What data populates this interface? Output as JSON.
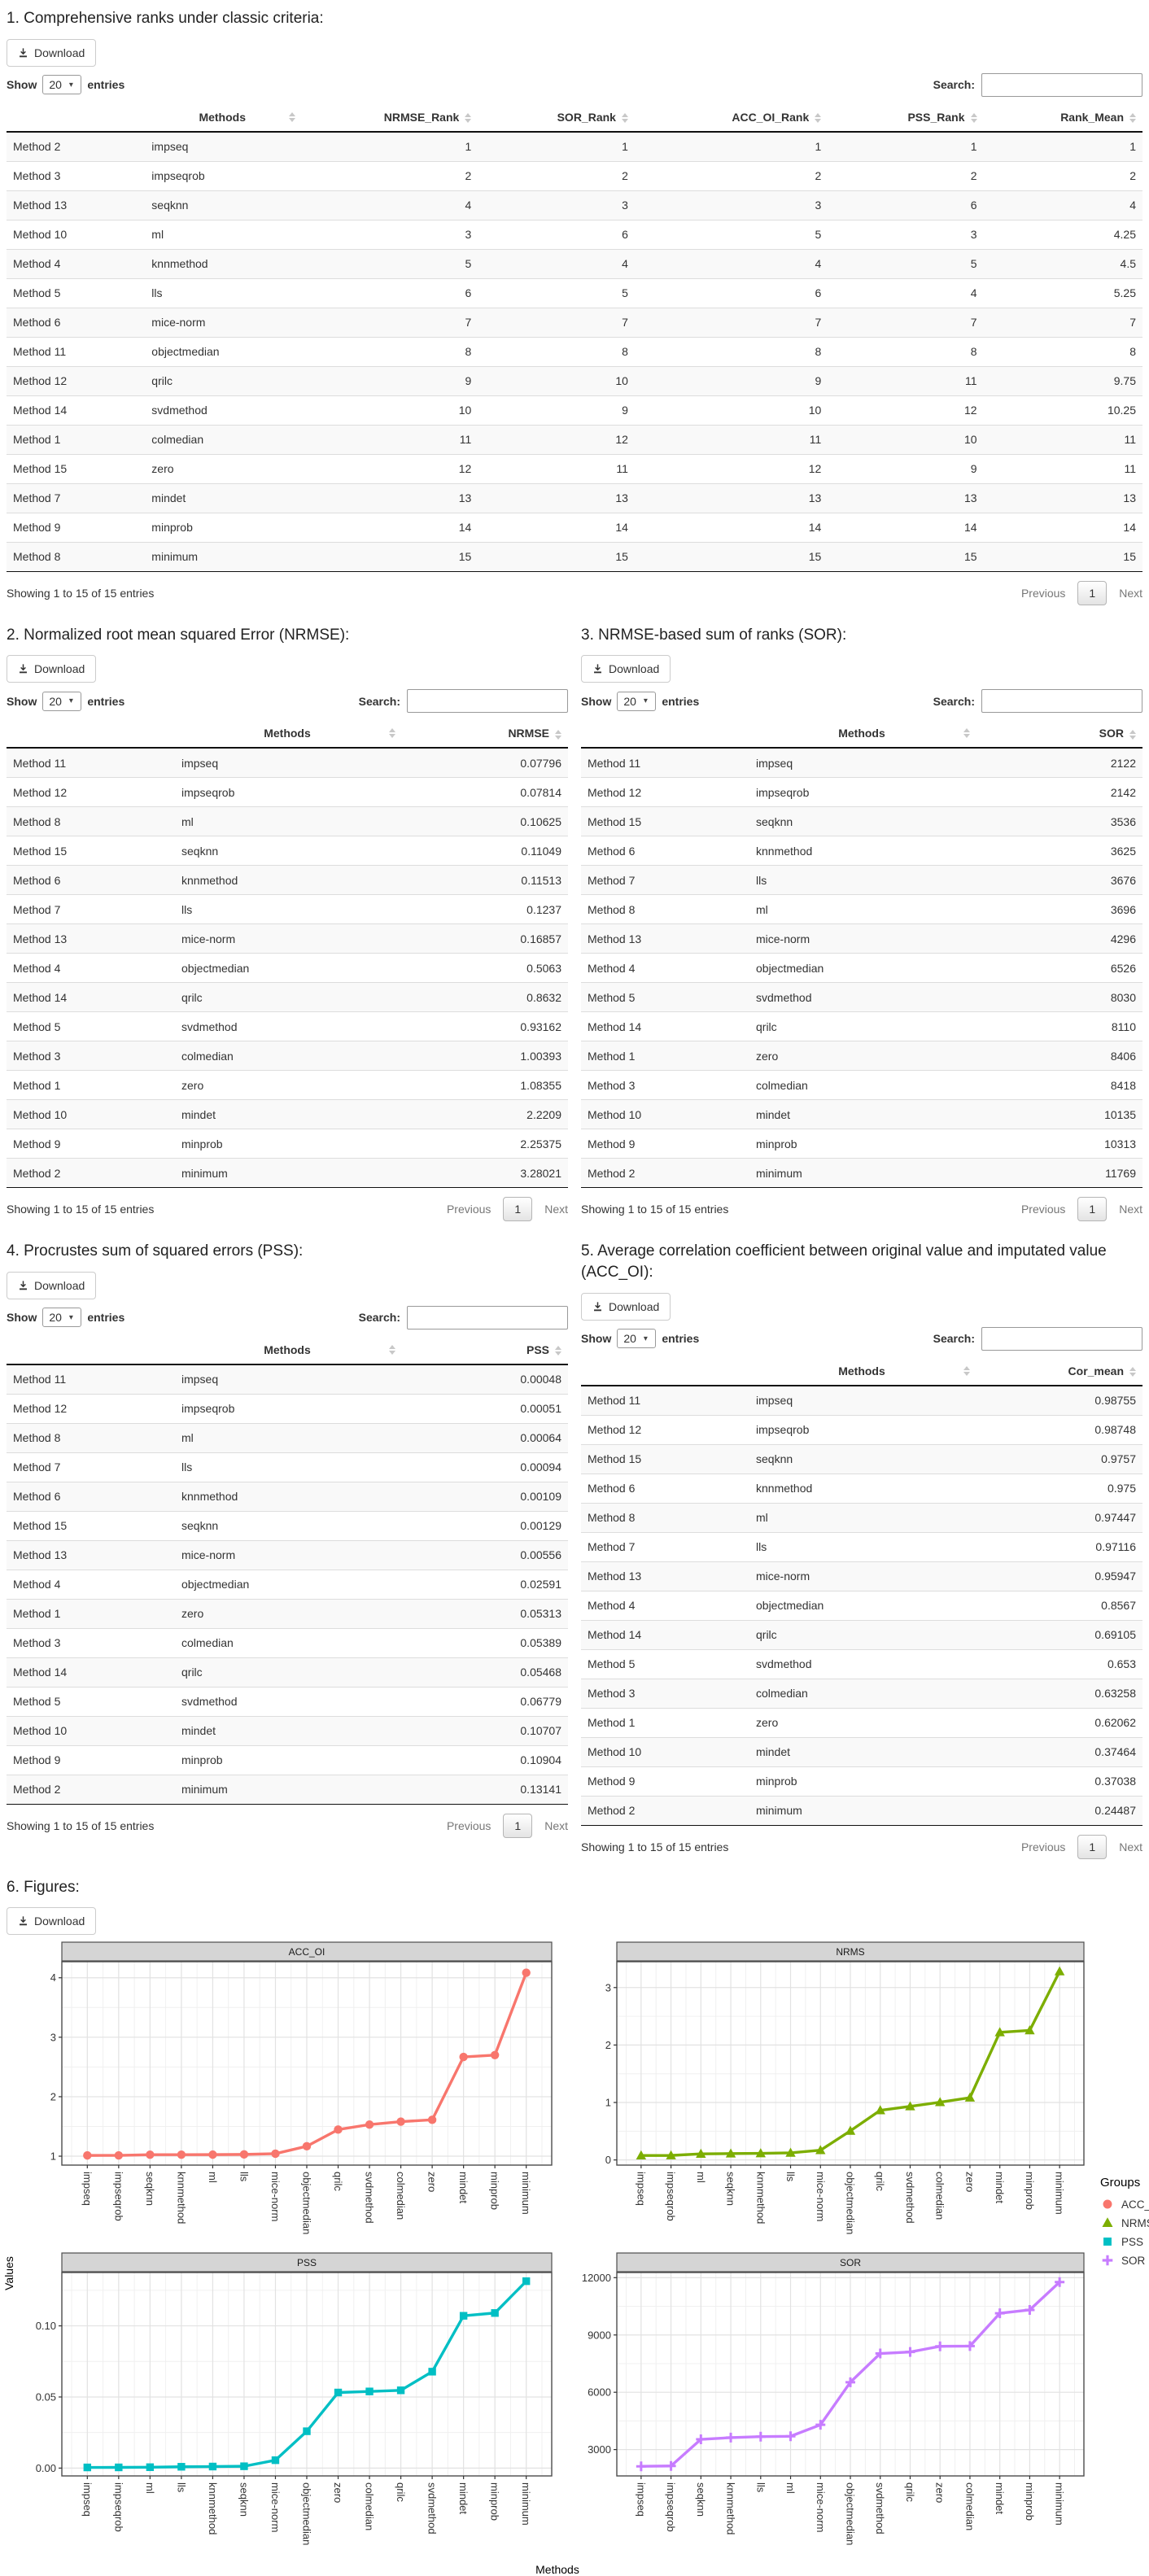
{
  "ui": {
    "download_label": "Download",
    "show_label": "Show",
    "page_size": "20",
    "entries_label": "entries",
    "search_label": "Search:",
    "search_value": "",
    "footer_text": "Showing 1 to 15 of 15 entries",
    "prev_label": "Previous",
    "page_number": "1",
    "next_label": "Next"
  },
  "sections": {
    "ranks": {
      "title": "1. Comprehensive ranks under classic criteria:",
      "columns": [
        "Methods",
        "NRMSE_Rank",
        "SOR_Rank",
        "ACC_OI_Rank",
        "PSS_Rank",
        "Rank_Mean"
      ],
      "rows": [
        [
          "Method 2",
          "impseq",
          "1",
          "1",
          "1",
          "1",
          "1"
        ],
        [
          "Method 3",
          "impseqrob",
          "2",
          "2",
          "2",
          "2",
          "2"
        ],
        [
          "Method 13",
          "seqknn",
          "4",
          "3",
          "3",
          "6",
          "4"
        ],
        [
          "Method 10",
          "ml",
          "3",
          "6",
          "5",
          "3",
          "4.25"
        ],
        [
          "Method 4",
          "knnmethod",
          "5",
          "4",
          "4",
          "5",
          "4.5"
        ],
        [
          "Method 5",
          "lls",
          "6",
          "5",
          "6",
          "4",
          "5.25"
        ],
        [
          "Method 6",
          "mice-norm",
          "7",
          "7",
          "7",
          "7",
          "7"
        ],
        [
          "Method 11",
          "objectmedian",
          "8",
          "8",
          "8",
          "8",
          "8"
        ],
        [
          "Method 12",
          "qrilc",
          "9",
          "10",
          "9",
          "11",
          "9.75"
        ],
        [
          "Method 14",
          "svdmethod",
          "10",
          "9",
          "10",
          "12",
          "10.25"
        ],
        [
          "Method 1",
          "colmedian",
          "11",
          "12",
          "11",
          "10",
          "11"
        ],
        [
          "Method 15",
          "zero",
          "12",
          "11",
          "12",
          "9",
          "11"
        ],
        [
          "Method 7",
          "mindet",
          "13",
          "13",
          "13",
          "13",
          "13"
        ],
        [
          "Method 9",
          "minprob",
          "14",
          "14",
          "14",
          "14",
          "14"
        ],
        [
          "Method 8",
          "minimum",
          "15",
          "15",
          "15",
          "15",
          "15"
        ]
      ]
    },
    "nrmse": {
      "title": "2. Normalized root mean squared Error (NRMSE):",
      "columns": [
        "Methods",
        "NRMSE"
      ],
      "rows": [
        [
          "Method 11",
          "impseq",
          "0.07796"
        ],
        [
          "Method 12",
          "impseqrob",
          "0.07814"
        ],
        [
          "Method 8",
          "ml",
          "0.10625"
        ],
        [
          "Method 15",
          "seqknn",
          "0.11049"
        ],
        [
          "Method 6",
          "knnmethod",
          "0.11513"
        ],
        [
          "Method 7",
          "lls",
          "0.1237"
        ],
        [
          "Method 13",
          "mice-norm",
          "0.16857"
        ],
        [
          "Method 4",
          "objectmedian",
          "0.5063"
        ],
        [
          "Method 14",
          "qrilc",
          "0.8632"
        ],
        [
          "Method 5",
          "svdmethod",
          "0.93162"
        ],
        [
          "Method 3",
          "colmedian",
          "1.00393"
        ],
        [
          "Method 1",
          "zero",
          "1.08355"
        ],
        [
          "Method 10",
          "mindet",
          "2.2209"
        ],
        [
          "Method 9",
          "minprob",
          "2.25375"
        ],
        [
          "Method 2",
          "minimum",
          "3.28021"
        ]
      ]
    },
    "sor": {
      "title": "3. NRMSE-based sum of ranks (SOR):",
      "columns": [
        "Methods",
        "SOR"
      ],
      "rows": [
        [
          "Method 11",
          "impseq",
          "2122"
        ],
        [
          "Method 12",
          "impseqrob",
          "2142"
        ],
        [
          "Method 15",
          "seqknn",
          "3536"
        ],
        [
          "Method 6",
          "knnmethod",
          "3625"
        ],
        [
          "Method 7",
          "lls",
          "3676"
        ],
        [
          "Method 8",
          "ml",
          "3696"
        ],
        [
          "Method 13",
          "mice-norm",
          "4296"
        ],
        [
          "Method 4",
          "objectmedian",
          "6526"
        ],
        [
          "Method 5",
          "svdmethod",
          "8030"
        ],
        [
          "Method 14",
          "qrilc",
          "8110"
        ],
        [
          "Method 1",
          "zero",
          "8406"
        ],
        [
          "Method 3",
          "colmedian",
          "8418"
        ],
        [
          "Method 10",
          "mindet",
          "10135"
        ],
        [
          "Method 9",
          "minprob",
          "10313"
        ],
        [
          "Method 2",
          "minimum",
          "11769"
        ]
      ]
    },
    "pss": {
      "title": "4. Procrustes sum of squared errors (PSS):",
      "columns": [
        "Methods",
        "PSS"
      ],
      "rows": [
        [
          "Method 11",
          "impseq",
          "0.00048"
        ],
        [
          "Method 12",
          "impseqrob",
          "0.00051"
        ],
        [
          "Method 8",
          "ml",
          "0.00064"
        ],
        [
          "Method 7",
          "lls",
          "0.00094"
        ],
        [
          "Method 6",
          "knnmethod",
          "0.00109"
        ],
        [
          "Method 15",
          "seqknn",
          "0.00129"
        ],
        [
          "Method 13",
          "mice-norm",
          "0.00556"
        ],
        [
          "Method 4",
          "objectmedian",
          "0.02591"
        ],
        [
          "Method 1",
          "zero",
          "0.05313"
        ],
        [
          "Method 3",
          "colmedian",
          "0.05389"
        ],
        [
          "Method 14",
          "qrilc",
          "0.05468"
        ],
        [
          "Method 5",
          "svdmethod",
          "0.06779"
        ],
        [
          "Method 10",
          "mindet",
          "0.10707"
        ],
        [
          "Method 9",
          "minprob",
          "0.10904"
        ],
        [
          "Method 2",
          "minimum",
          "0.13141"
        ]
      ]
    },
    "acc": {
      "title": "5. Average correlation coefficient between original value and imputated value (ACC_OI):",
      "columns": [
        "Methods",
        "Cor_mean"
      ],
      "rows": [
        [
          "Method 11",
          "impseq",
          "0.98755"
        ],
        [
          "Method 12",
          "impseqrob",
          "0.98748"
        ],
        [
          "Method 15",
          "seqknn",
          "0.9757"
        ],
        [
          "Method 6",
          "knnmethod",
          "0.975"
        ],
        [
          "Method 8",
          "ml",
          "0.97447"
        ],
        [
          "Method 7",
          "lls",
          "0.97116"
        ],
        [
          "Method 13",
          "mice-norm",
          "0.95947"
        ],
        [
          "Method 4",
          "objectmedian",
          "0.8567"
        ],
        [
          "Method 14",
          "qrilc",
          "0.69105"
        ],
        [
          "Method 5",
          "svdmethod",
          "0.653"
        ],
        [
          "Method 3",
          "colmedian",
          "0.63258"
        ],
        [
          "Method 1",
          "zero",
          "0.62062"
        ],
        [
          "Method 10",
          "mindet",
          "0.37464"
        ],
        [
          "Method 9",
          "minprob",
          "0.37038"
        ],
        [
          "Method 2",
          "minimum",
          "0.24487"
        ]
      ]
    },
    "figures": {
      "title": "6. Figures:"
    }
  },
  "chart_data": {
    "xlabel": "Methods",
    "ylabel": "Values",
    "legend": {
      "title": "Groups",
      "entries": [
        {
          "label": "ACC_OI",
          "color": "#F8766D",
          "marker": "circle"
        },
        {
          "label": "NRMS",
          "color": "#7CAE00",
          "marker": "triangle"
        },
        {
          "label": "PSS",
          "color": "#00BFC4",
          "marker": "square"
        },
        {
          "label": "SOR",
          "color": "#C77CFF",
          "marker": "plus"
        }
      ]
    },
    "charts": [
      {
        "type": "line",
        "title": "ACC_OI",
        "color": "#F8766D",
        "marker": "circle",
        "categories": [
          "impseq",
          "impseqrob",
          "seqknn",
          "knnmethod",
          "ml",
          "lls",
          "mice-norm",
          "objectmedian",
          "qrilc",
          "svdmethod",
          "colmedian",
          "zero",
          "mindet",
          "minprob",
          "minimum"
        ],
        "values": [
          1.0126,
          1.0127,
          1.0249,
          1.0256,
          1.0262,
          1.0297,
          1.0422,
          1.1673,
          1.4471,
          1.5314,
          1.5808,
          1.6113,
          2.6692,
          2.7,
          4.0838
        ],
        "yticks": [
          {
            "label": "1",
            "v": 1
          },
          {
            "label": "2",
            "v": 2
          },
          {
            "label": "3",
            "v": 3
          },
          {
            "label": "4",
            "v": 4
          }
        ],
        "ylim": [
          0.85,
          4.27
        ]
      },
      {
        "type": "line",
        "title": "NRMS",
        "color": "#7CAE00",
        "marker": "triangle",
        "categories": [
          "impseq",
          "impseqrob",
          "ml",
          "seqknn",
          "knnmethod",
          "lls",
          "mice-norm",
          "objectmedian",
          "qrilc",
          "svdmethod",
          "colmedian",
          "zero",
          "mindet",
          "minprob",
          "minimum"
        ],
        "values": [
          0.07796,
          0.07814,
          0.10625,
          0.11049,
          0.11513,
          0.1237,
          0.16857,
          0.5063,
          0.8632,
          0.93162,
          1.00393,
          1.08355,
          2.2209,
          2.25375,
          3.28021
        ],
        "yticks": [
          {
            "label": "0",
            "v": 0
          },
          {
            "label": "1",
            "v": 1
          },
          {
            "label": "2",
            "v": 2
          },
          {
            "label": "3",
            "v": 3
          }
        ],
        "ylim": [
          -0.09,
          3.45
        ]
      },
      {
        "type": "line",
        "title": "PSS",
        "color": "#00BFC4",
        "marker": "square",
        "categories": [
          "impseq",
          "impseqrob",
          "ml",
          "lls",
          "knnmethod",
          "seqknn",
          "mice-norm",
          "objectmedian",
          "zero",
          "colmedian",
          "qrilc",
          "svdmethod",
          "mindet",
          "minprob",
          "minimum"
        ],
        "values": [
          0.00048,
          0.00051,
          0.00064,
          0.00094,
          0.00109,
          0.00129,
          0.00556,
          0.02591,
          0.05313,
          0.05389,
          0.05468,
          0.06779,
          0.10707,
          0.10904,
          0.13141
        ],
        "yticks": [
          {
            "label": "0.00",
            "v": 0
          },
          {
            "label": "0.05",
            "v": 0.05
          },
          {
            "label": "0.10",
            "v": 0.1
          }
        ],
        "ylim": [
          -0.0055,
          0.1375
        ]
      },
      {
        "type": "line",
        "title": "SOR",
        "color": "#C77CFF",
        "marker": "plus",
        "categories": [
          "impseq",
          "impseqrob",
          "seqknn",
          "knnmethod",
          "lls",
          "ml",
          "mice-norm",
          "objectmedian",
          "svdmethod",
          "qrilc",
          "zero",
          "colmedian",
          "mindet",
          "minprob",
          "minimum"
        ],
        "values": [
          2122,
          2142,
          3536,
          3625,
          3676,
          3696,
          4296,
          6526,
          8030,
          8110,
          8406,
          8418,
          10135,
          10313,
          11769
        ],
        "yticks": [
          {
            "label": "3000",
            "v": 3000
          },
          {
            "label": "6000",
            "v": 6000
          },
          {
            "label": "9000",
            "v": 9000
          },
          {
            "label": "12000",
            "v": 12000
          }
        ],
        "ylim": [
          1620,
          12270
        ]
      }
    ]
  }
}
